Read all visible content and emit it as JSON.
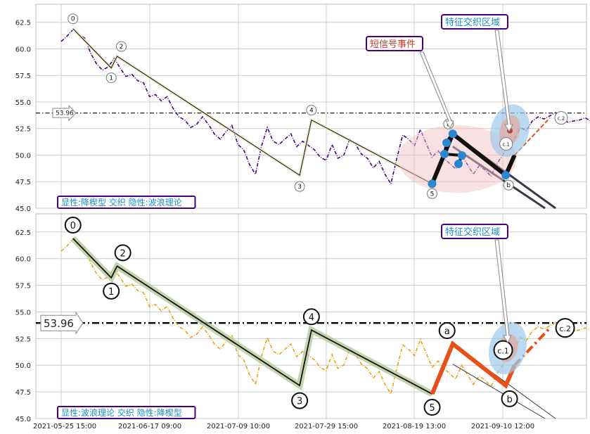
{
  "chart_data": [
    {
      "type": "line",
      "panel": "top",
      "ylim": [
        45,
        64.2
      ],
      "yticks": [
        "45.0",
        "47.5",
        "50.0",
        "52.5",
        "55.0",
        "57.5",
        "60.0",
        "62.5"
      ],
      "grid": true,
      "hline": {
        "value": 53.96,
        "label": "53.96"
      },
      "series": [
        {
          "values_x": [
            0,
            2,
            4,
            6,
            8,
            10,
            12,
            14,
            16,
            18,
            20,
            22,
            24,
            26,
            28,
            30,
            32,
            34,
            36,
            38,
            40,
            42,
            44,
            46,
            48,
            50,
            52,
            54,
            56,
            58,
            60,
            62,
            64,
            66,
            68,
            70,
            72,
            74,
            76,
            78,
            80,
            82,
            84,
            86,
            88,
            90,
            92,
            94,
            96,
            98,
            100,
            102,
            104,
            106,
            108,
            110,
            112,
            114,
            116,
            118,
            120,
            122,
            124,
            126,
            128,
            130,
            132,
            134,
            136,
            138,
            140,
            142,
            144,
            146,
            148,
            150,
            152,
            154,
            156,
            158,
            160,
            162,
            164,
            166,
            168,
            170,
            172,
            174,
            176,
            178,
            180
          ],
          "values_y": [
            60.7,
            61.2,
            61.8,
            61.4,
            61.0,
            59.6,
            58.6,
            58.0,
            58.3,
            59.1,
            58.2,
            57.4,
            57.6,
            57.0,
            56.8,
            55.5,
            55.7,
            55.1,
            55.5,
            54.4,
            53.6,
            53.3,
            52.6,
            52.9,
            53.6,
            52.9,
            52.0,
            51.5,
            52.2,
            52.8,
            51.0,
            50.5,
            49.1,
            48.2,
            50.8,
            52.6,
            51.3,
            51.0,
            51.5,
            52.0,
            50.8,
            51.3,
            50.9,
            50.5,
            49.8,
            49.5,
            51.0,
            49.7,
            50.0,
            51.5,
            51.0,
            50.1,
            49.7,
            48.8,
            49.4,
            48.2,
            47.3,
            49.7,
            51.9,
            51.5,
            50.9,
            52.4,
            51.1,
            49.8,
            50.4,
            49.7,
            49.2,
            48.7,
            50.0,
            49.1,
            48.2,
            49.0,
            48.6,
            48.0,
            49.2,
            50.0,
            50.8,
            51.6,
            52.6,
            52.3,
            53.2,
            53.6,
            53.4,
            53.7,
            54.0,
            53.4,
            53.1,
            53.2,
            53.3,
            53.5,
            53.2
          ],
          "color": "#4b0082"
        }
      ],
      "wave_points": [
        {
          "label": "0",
          "x": 4,
          "y": 61.9
        },
        {
          "label": "1",
          "x": 17,
          "y": 58.2
        },
        {
          "label": "2",
          "x": 19,
          "y": 59.3
        },
        {
          "label": "3",
          "x": 81,
          "y": 48.1
        },
        {
          "label": "4",
          "x": 85,
          "y": 53.3
        },
        {
          "label": "5",
          "x": 126,
          "y": 47.3
        },
        {
          "label": "a",
          "x": 133,
          "y": 52.0
        },
        {
          "label": "b",
          "x": 151,
          "y": 48.1
        },
        {
          "label": "c.1",
          "x": 154,
          "y": 50.0
        },
        {
          "label": "c.2",
          "x": 166,
          "y": 53.5
        }
      ],
      "annotations": {
        "short_signal": "短信号事件",
        "feature_zone": "特征交织区域",
        "footer": "显性:降楔型 交织 隐性:波浪理论"
      }
    },
    {
      "type": "line",
      "panel": "bottom",
      "ylim": [
        45,
        64.2
      ],
      "yticks": [
        "45.0",
        "47.5",
        "50.0",
        "52.5",
        "55.0",
        "57.5",
        "60.0",
        "62.5"
      ],
      "grid": true,
      "hline": {
        "value": 53.96,
        "label": "53.96"
      },
      "series": [
        {
          "values_x": [
            0,
            2,
            4,
            6,
            8,
            10,
            12,
            14,
            16,
            18,
            20,
            22,
            24,
            26,
            28,
            30,
            32,
            34,
            36,
            38,
            40,
            42,
            44,
            46,
            48,
            50,
            52,
            54,
            56,
            58,
            60,
            62,
            64,
            66,
            68,
            70,
            72,
            74,
            76,
            78,
            80,
            82,
            84,
            86,
            88,
            90,
            92,
            94,
            96,
            98,
            100,
            102,
            104,
            106,
            108,
            110,
            112,
            114,
            116,
            118,
            120,
            122,
            124,
            126,
            128,
            130,
            132,
            134,
            136,
            138,
            140,
            142,
            144,
            146,
            148,
            150,
            152,
            154,
            156,
            158,
            160,
            162,
            164,
            166,
            168,
            170,
            172,
            174,
            176,
            178,
            180
          ],
          "values_y": [
            60.7,
            61.2,
            61.8,
            61.4,
            61.0,
            59.6,
            58.6,
            58.0,
            58.3,
            59.1,
            58.2,
            57.4,
            57.6,
            57.0,
            56.8,
            55.5,
            55.7,
            55.1,
            55.5,
            54.4,
            53.6,
            53.3,
            52.6,
            52.9,
            53.6,
            52.9,
            52.0,
            51.5,
            52.2,
            52.8,
            51.0,
            50.5,
            49.1,
            48.2,
            50.8,
            52.6,
            51.3,
            51.0,
            51.5,
            52.0,
            50.8,
            51.3,
            50.9,
            50.5,
            49.8,
            49.5,
            51.0,
            49.7,
            50.0,
            51.5,
            51.0,
            50.1,
            49.7,
            48.8,
            49.4,
            48.2,
            47.3,
            49.7,
            51.9,
            51.5,
            50.9,
            52.4,
            51.1,
            49.8,
            50.4,
            49.7,
            49.2,
            48.7,
            50.0,
            49.1,
            48.2,
            49.0,
            48.6,
            48.0,
            49.2,
            50.0,
            50.8,
            51.6,
            52.6,
            52.3,
            53.2,
            53.6,
            53.4,
            53.7,
            54.0,
            53.4,
            53.1,
            53.2,
            53.3,
            53.5,
            53.2
          ],
          "color": "#e8a317"
        }
      ],
      "wave_points": [
        {
          "label": "0",
          "x": 4,
          "y": 61.9
        },
        {
          "label": "1",
          "x": 17,
          "y": 58.2
        },
        {
          "label": "2",
          "x": 19,
          "y": 59.3
        },
        {
          "label": "3",
          "x": 81,
          "y": 48.1
        },
        {
          "label": "4",
          "x": 85,
          "y": 53.3
        },
        {
          "label": "5",
          "x": 126,
          "y": 47.3
        },
        {
          "label": "a",
          "x": 133,
          "y": 52.0
        },
        {
          "label": "b",
          "x": 151,
          "y": 48.1
        },
        {
          "label": "c.1",
          "x": 154,
          "y": 50.0
        },
        {
          "label": "c.2",
          "x": 166,
          "y": 53.5
        }
      ],
      "annotations": {
        "feature_zone": "特征交织区域",
        "footer": "显性:波浪理论 交织 隐性:降楔型"
      }
    }
  ],
  "x_axis": {
    "tick_labels": [
      "2021-05-25 15:00",
      "2021-06-17 09:00",
      "2021-07-09 10:00",
      "2021-07-29 15:00",
      "2021-08-19 13:00",
      "2021-09-10 12:00"
    ]
  }
}
